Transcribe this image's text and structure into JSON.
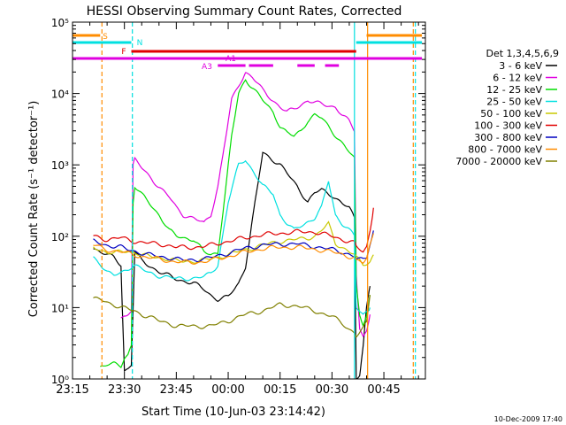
{
  "chart_data": {
    "type": "line",
    "title": "HESSI Observing Summary Count Rates, Corrected",
    "xlabel": "Start Time (10-Jun-03 23:14:42)",
    "ylabel": "Corrected Count Rate (s⁻¹ detector⁻¹)",
    "x_ticks": [
      "23:15",
      "23:30",
      "23:45",
      "00:00",
      "00:15",
      "00:30",
      "00:45"
    ],
    "x_tick_minutes": [
      0,
      15,
      30,
      45,
      60,
      75,
      90
    ],
    "x_range_minutes": [
      0,
      102
    ],
    "y_scale": "log",
    "y_range": [
      1,
      100000
    ],
    "y_ticks": [
      "10⁰",
      "10¹",
      "10²",
      "10³",
      "10⁴",
      "10⁵"
    ],
    "timestamp": "10-Dec-2009 17:40",
    "legend": {
      "title": "Det 1,3,4,5,6,9",
      "placement": "right-outside",
      "entries": [
        {
          "label": "3 - 6 keV",
          "color": "#000000"
        },
        {
          "label": "6 - 12 keV",
          "color": "#e000e0"
        },
        {
          "label": "12 - 25 keV",
          "color": "#00dd00"
        },
        {
          "label": "25 - 50 keV",
          "color": "#00e0e0"
        },
        {
          "label": "50 - 100 keV",
          "color": "#c8c800"
        },
        {
          "label": "100 - 300 keV",
          "color": "#e00000"
        },
        {
          "label": "300 - 800 keV",
          "color": "#0000c0"
        },
        {
          "label": "800 - 7000 keV",
          "color": "#ff8c00"
        },
        {
          "label": "7000 - 20000 keV",
          "color": "#808000"
        }
      ]
    },
    "flags": [
      {
        "label": "S",
        "color": "#ff8c00",
        "segments": [
          [
            0,
            8
          ],
          [
            85,
            101
          ]
        ]
      },
      {
        "label": "N",
        "color": "#00e0e0",
        "segments": [
          [
            0,
            17
          ],
          [
            82,
            101
          ]
        ]
      },
      {
        "label": "F",
        "color": "#e00000",
        "segments": [
          [
            17,
            82
          ]
        ]
      },
      {
        "label": "A1",
        "color": "#e000e0",
        "segments": [
          [
            0,
            101
          ]
        ]
      },
      {
        "label": "A3",
        "color": "#e000e0",
        "segments": [
          [
            42,
            50
          ],
          [
            51,
            58
          ],
          [
            65,
            70
          ],
          [
            73,
            77
          ]
        ]
      }
    ],
    "vlines": [
      {
        "minute": 8.5,
        "color": "#ff8c00",
        "style": "dashed"
      },
      {
        "minute": 17.3,
        "color": "#00e0e0",
        "style": "dashed"
      },
      {
        "minute": 81.5,
        "color": "#00e0e0",
        "style": "solid"
      },
      {
        "minute": 85.3,
        "color": "#ff8c00",
        "style": "solid"
      },
      {
        "minute": 98.5,
        "color": "#ff8c00",
        "style": "dashed"
      },
      {
        "minute": 99.1,
        "color": "#00e0e0",
        "style": "dashed"
      }
    ],
    "series": [
      {
        "name": "3 - 6 keV",
        "color": "#000000",
        "x": [
          6,
          8,
          10,
          12,
          14,
          15,
          16,
          17,
          18,
          20,
          25,
          30,
          35,
          38,
          40,
          42,
          45,
          48,
          50,
          55,
          60,
          65,
          68,
          70,
          72,
          75,
          78,
          80,
          81.5,
          82,
          83,
          84,
          85,
          86
        ],
        "y": [
          70,
          60,
          55,
          50,
          40,
          1.3,
          1.4,
          1.6,
          60,
          45,
          32,
          25,
          22,
          18,
          15,
          13,
          14,
          22,
          38,
          1500,
          1000,
          500,
          300,
          400,
          450,
          380,
          280,
          250,
          180,
          1,
          1.2,
          3,
          10,
          20
        ]
      },
      {
        "name": "6 - 12 keV",
        "color": "#e000e0",
        "x": [
          14,
          15,
          16,
          17,
          17.5,
          18,
          20,
          22,
          25,
          28,
          30,
          32,
          35,
          38,
          40,
          42,
          44,
          46,
          48,
          50,
          52,
          55,
          58,
          60,
          62,
          64,
          66,
          68,
          70,
          72,
          74,
          76,
          78,
          80,
          81.5,
          82,
          83,
          84,
          85,
          86
        ],
        "y": [
          7,
          8,
          8.5,
          9,
          1000,
          1200,
          900,
          700,
          500,
          350,
          250,
          200,
          180,
          150,
          200,
          500,
          2000,
          8000,
          13000,
          20000,
          17000,
          11000,
          8000,
          6500,
          5500,
          6000,
          7000,
          8000,
          7500,
          7000,
          6800,
          6500,
          5000,
          4000,
          3000,
          30,
          5,
          4,
          5,
          8
        ]
      },
      {
        "name": "12 - 25 keV",
        "color": "#00dd00",
        "x": [
          8,
          10,
          12,
          14,
          15,
          16,
          17,
          17.5,
          18,
          20,
          22,
          25,
          28,
          30,
          35,
          38,
          40,
          42,
          44,
          46,
          48,
          50,
          55,
          58,
          60,
          62,
          64,
          66,
          68,
          70,
          72,
          75,
          78,
          80,
          81.5,
          82,
          83,
          84,
          85,
          86
        ],
        "y": [
          1.5,
          1.6,
          1.6,
          1.5,
          2,
          2.2,
          3,
          300,
          500,
          380,
          300,
          200,
          120,
          100,
          90,
          60,
          55,
          60,
          350,
          2500,
          10000,
          16000,
          8000,
          5500,
          3500,
          2800,
          2500,
          3000,
          4200,
          5000,
          4500,
          3000,
          2000,
          1500,
          1200,
          20,
          8,
          6,
          8,
          15
        ]
      },
      {
        "name": "25 - 50 keV",
        "color": "#00e0e0",
        "x": [
          6,
          8,
          10,
          12,
          14,
          16,
          17,
          18,
          20,
          22,
          25,
          28,
          30,
          35,
          38,
          40,
          42,
          45,
          48,
          50,
          55,
          58,
          60,
          62,
          64,
          66,
          68,
          70,
          72,
          74,
          76,
          78,
          80,
          81.5,
          82,
          84,
          86
        ],
        "y": [
          50,
          42,
          32,
          28,
          30,
          35,
          38,
          40,
          35,
          30,
          28,
          27,
          25,
          26,
          27,
          30,
          40,
          300,
          1000,
          1200,
          500,
          400,
          200,
          150,
          120,
          140,
          160,
          180,
          250,
          600,
          200,
          150,
          120,
          100,
          10,
          8,
          10
        ]
      },
      {
        "name": "50 - 100 keV",
        "color": "#c8c800",
        "x": [
          6,
          8,
          10,
          12,
          14,
          16,
          18,
          20,
          22,
          25,
          28,
          30,
          32,
          35,
          38,
          40,
          45,
          50,
          55,
          60,
          65,
          68,
          70,
          72,
          74,
          76,
          78,
          80,
          81.5,
          82,
          84,
          86,
          87
        ],
        "y": [
          70,
          65,
          60,
          58,
          60,
          62,
          60,
          55,
          52,
          50,
          48,
          45,
          44,
          45,
          46,
          48,
          55,
          65,
          75,
          85,
          90,
          95,
          100,
          120,
          150,
          80,
          70,
          60,
          55,
          50,
          40,
          45,
          55
        ]
      },
      {
        "name": "100 - 300 keV",
        "color": "#e00000",
        "x": [
          6,
          8,
          10,
          12,
          14,
          16,
          18,
          20,
          22,
          25,
          28,
          30,
          32,
          35,
          38,
          40,
          45,
          50,
          55,
          60,
          65,
          70,
          75,
          78,
          80,
          81.5,
          82,
          84,
          85,
          86,
          87
        ],
        "y": [
          100,
          95,
          90,
          92,
          95,
          90,
          85,
          82,
          80,
          78,
          74,
          70,
          70,
          70,
          72,
          75,
          85,
          95,
          105,
          110,
          115,
          115,
          100,
          90,
          85,
          80,
          70,
          60,
          70,
          120,
          250
        ]
      },
      {
        "name": "300 - 800 keV",
        "color": "#0000c0",
        "x": [
          6,
          8,
          10,
          12,
          14,
          16,
          18,
          20,
          22,
          25,
          28,
          30,
          32,
          35,
          38,
          40,
          45,
          50,
          55,
          60,
          65,
          70,
          75,
          78,
          80,
          81.5,
          82,
          84,
          85,
          86,
          87
        ],
        "y": [
          85,
          80,
          75,
          72,
          70,
          65,
          62,
          58,
          55,
          52,
          50,
          48,
          46,
          47,
          48,
          50,
          58,
          68,
          75,
          78,
          78,
          72,
          65,
          60,
          56,
          52,
          48,
          46,
          50,
          80,
          120
        ]
      },
      {
        "name": "800 - 7000 keV",
        "color": "#ff8c00",
        "x": [
          6,
          8,
          10,
          12,
          14,
          16,
          18,
          20,
          22,
          25,
          28,
          30,
          32,
          35,
          38,
          40,
          45,
          50,
          55,
          60,
          65,
          70,
          75,
          78,
          80,
          81.5,
          82,
          84,
          85,
          86,
          87
        ],
        "y": [
          75,
          70,
          65,
          62,
          60,
          58,
          55,
          52,
          50,
          48,
          45,
          44,
          43,
          43,
          44,
          46,
          52,
          60,
          67,
          70,
          70,
          66,
          60,
          56,
          52,
          50,
          45,
          42,
          48,
          75,
          110
        ]
      },
      {
        "name": "7000 - 20000 keV",
        "color": "#808000",
        "x": [
          6,
          8,
          10,
          12,
          14,
          16,
          18,
          20,
          22,
          25,
          28,
          30,
          32,
          35,
          38,
          40,
          45,
          50,
          55,
          60,
          65,
          70,
          75,
          78,
          80,
          81.5,
          82,
          84,
          85,
          86
        ],
        "y": [
          13,
          13,
          12,
          11,
          10,
          9.5,
          9,
          8,
          7.5,
          6.5,
          6,
          5.5,
          5.5,
          5.5,
          5.5,
          5.5,
          6.5,
          8,
          9,
          11,
          10.5,
          9,
          7.5,
          6,
          5,
          4.5,
          4,
          5,
          6,
          15
        ]
      }
    ]
  }
}
